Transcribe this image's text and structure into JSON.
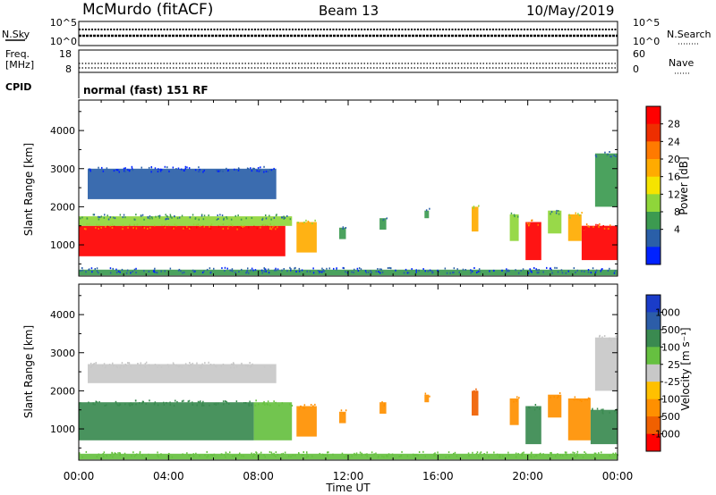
{
  "header": {
    "station": "McMurdo (fitACF)",
    "beam": "Beam 13",
    "date": "10/May/2019"
  },
  "sky_panel": {
    "left_label": "N.Sky",
    "right_label": "N.Search",
    "left_ticks": [
      "10^5",
      "10^0"
    ],
    "right_ticks": [
      "10^5",
      "10^0"
    ]
  },
  "freq_panel": {
    "left_label_1": "Freq.",
    "left_label_2": "[MHz]",
    "right_label": "Nave",
    "left_ticks": [
      "18",
      "8"
    ],
    "right_ticks": [
      "60",
      "0"
    ]
  },
  "cpid": {
    "label": "CPID",
    "value": "normal (fast) 151 RF"
  },
  "power_colorbar": {
    "label": "Power [dB]",
    "ticks": [
      "28",
      "24",
      "20",
      "16",
      "12",
      "8",
      "4"
    ],
    "colors": [
      "#ff0000",
      "#ee2e00",
      "#ff7a00",
      "#ffab00",
      "#f5e400",
      "#8fd63a",
      "#3c9a50",
      "#2a5fa8",
      "#0022ff"
    ]
  },
  "velocity_colorbar": {
    "label": "Velocity [m s⁻¹]",
    "ticks": [
      "1000",
      "500",
      "100",
      "25",
      "-25",
      "-100",
      "-500",
      "-1000"
    ],
    "colors": [
      "#1a3cc8",
      "#2c5da8",
      "#3a8a50",
      "#66c040",
      "#c8c8c8",
      "#ffc000",
      "#ff9000",
      "#f06000",
      "#ff0000"
    ]
  },
  "axes": {
    "ylabel": "Slant Range [km]",
    "xlabel": "Time UT",
    "yticks": [
      "4000",
      "3000",
      "2000",
      "1000"
    ],
    "xticks": [
      "00:00",
      "04:00",
      "08:00",
      "12:00",
      "16:00",
      "20:00",
      "00:00"
    ]
  },
  "chart_data": [
    {
      "type": "heatmap",
      "title": "",
      "xlabel": "",
      "ylabel": "Slant Range [km]",
      "xlim_hours": [
        0,
        24
      ],
      "ylim": [
        180,
        4800
      ],
      "colorbar_label": "Power [dB]",
      "colorbar_ticks": [
        4,
        8,
        12,
        16,
        20,
        24,
        28
      ],
      "features": [
        {
          "start": 0.0,
          "end": 9.2,
          "r0": 700,
          "r1": 1500,
          "power": 28
        },
        {
          "start": 0.0,
          "end": 9.5,
          "r0": 1500,
          "r1": 1750,
          "power": 14
        },
        {
          "start": 0.4,
          "end": 8.8,
          "r0": 2200,
          "r1": 3000,
          "power": 8
        },
        {
          "start": 9.7,
          "end": 10.6,
          "r0": 800,
          "r1": 1600,
          "power": 20
        },
        {
          "start": 11.6,
          "end": 11.9,
          "r0": 1150,
          "r1": 1450,
          "power": 12
        },
        {
          "start": 13.4,
          "end": 13.7,
          "r0": 1400,
          "r1": 1700,
          "power": 12
        },
        {
          "start": 15.4,
          "end": 15.6,
          "r0": 1700,
          "r1": 1900,
          "power": 10
        },
        {
          "start": 17.5,
          "end": 17.8,
          "r0": 1350,
          "r1": 2000,
          "power": 20
        },
        {
          "start": 19.2,
          "end": 19.6,
          "r0": 1100,
          "r1": 1800,
          "power": 14
        },
        {
          "start": 19.9,
          "end": 20.6,
          "r0": 600,
          "r1": 1600,
          "power": 26
        },
        {
          "start": 20.9,
          "end": 21.5,
          "r0": 1300,
          "r1": 1900,
          "power": 14
        },
        {
          "start": 21.8,
          "end": 22.4,
          "r0": 1100,
          "r1": 1800,
          "power": 20
        },
        {
          "start": 22.4,
          "end": 24.0,
          "r0": 600,
          "r1": 1500,
          "power": 28
        },
        {
          "start": 23.0,
          "end": 24.0,
          "r0": 2000,
          "r1": 3400,
          "power": 12
        },
        {
          "start": 0.0,
          "end": 24.0,
          "r0": 200,
          "r1": 350,
          "power": 10
        }
      ]
    },
    {
      "type": "heatmap",
      "title": "",
      "xlabel": "Time UT",
      "ylabel": "Slant Range [km]",
      "xlim_hours": [
        0,
        24
      ],
      "ylim": [
        180,
        4800
      ],
      "colorbar_label": "Velocity [m s⁻¹]",
      "colorbar_ticks": [
        -1000,
        -500,
        -100,
        -25,
        25,
        100,
        500,
        1000
      ],
      "features": [
        {
          "start": 0.0,
          "end": 7.8,
          "r0": 700,
          "r1": 1700,
          "velocity": 200
        },
        {
          "start": 7.8,
          "end": 9.5,
          "r0": 700,
          "r1": 1700,
          "velocity": 60
        },
        {
          "start": 0.4,
          "end": 8.8,
          "r0": 2200,
          "r1": 2700,
          "velocity": 0
        },
        {
          "start": 9.7,
          "end": 10.6,
          "r0": 800,
          "r1": 1600,
          "velocity": -150
        },
        {
          "start": 11.6,
          "end": 11.9,
          "r0": 1150,
          "r1": 1450,
          "velocity": -200
        },
        {
          "start": 13.4,
          "end": 13.7,
          "r0": 1400,
          "r1": 1700,
          "velocity": -200
        },
        {
          "start": 15.4,
          "end": 15.6,
          "r0": 1700,
          "r1": 1900,
          "velocity": -200
        },
        {
          "start": 17.5,
          "end": 17.8,
          "r0": 1350,
          "r1": 2000,
          "velocity": -600
        },
        {
          "start": 19.2,
          "end": 19.6,
          "r0": 1100,
          "r1": 1800,
          "velocity": -150
        },
        {
          "start": 19.9,
          "end": 20.6,
          "r0": 600,
          "r1": 1600,
          "velocity": 200
        },
        {
          "start": 20.9,
          "end": 21.5,
          "r0": 1300,
          "r1": 1900,
          "velocity": -150
        },
        {
          "start": 21.8,
          "end": 22.8,
          "r0": 700,
          "r1": 1800,
          "velocity": -200
        },
        {
          "start": 22.8,
          "end": 24.0,
          "r0": 600,
          "r1": 1500,
          "velocity": 200
        },
        {
          "start": 23.0,
          "end": 24.0,
          "r0": 2000,
          "r1": 3400,
          "velocity": 0
        },
        {
          "start": 0.0,
          "end": 24.0,
          "r0": 200,
          "r1": 350,
          "velocity": 60
        }
      ]
    }
  ]
}
